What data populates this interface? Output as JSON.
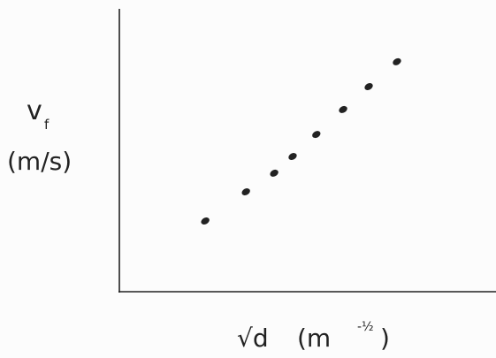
{
  "chart_data": {
    "type": "scatter",
    "ylabel": {
      "symbol": "v",
      "subscript": "f",
      "unit": "(m/s)"
    },
    "xlabel": {
      "symbol": "√d",
      "unit": "(m",
      "exponent": "-½",
      "close": ")"
    },
    "x": [
      22.8,
      33.6,
      41.1,
      46.0,
      52.3,
      59.4,
      66.2,
      73.7
    ],
    "values": [
      25.0,
      35.3,
      41.9,
      47.8,
      55.6,
      64.4,
      72.5,
      81.3
    ],
    "color": "#222222",
    "xlim": [
      0,
      100
    ],
    "ylim": [
      0,
      100
    ]
  }
}
